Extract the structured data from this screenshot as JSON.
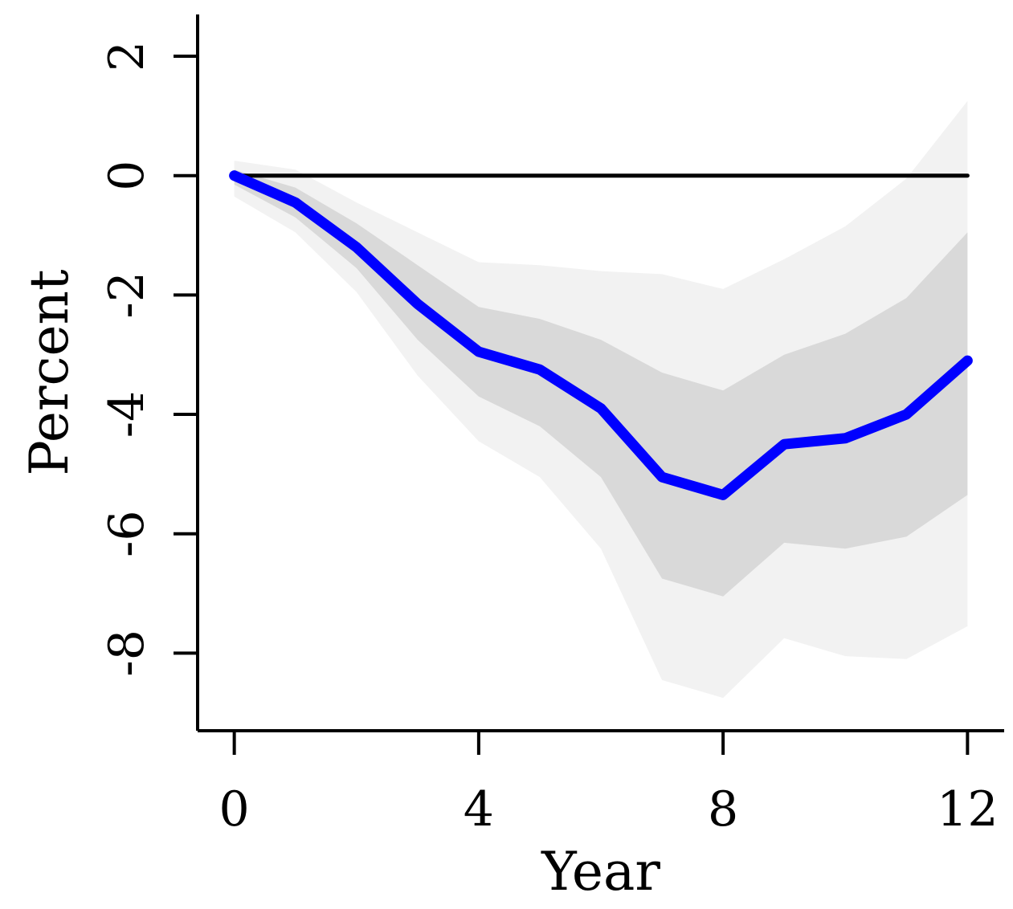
{
  "chart_data": {
    "type": "line",
    "title": "",
    "xlabel": "Year",
    "ylabel": "Percent",
    "xlim": [
      -0.6,
      12.6
    ],
    "ylim": [
      -9.3,
      2.7
    ],
    "xticks": [
      0,
      4,
      8,
      12
    ],
    "xtick_labels": [
      "0",
      "4",
      "8",
      "12"
    ],
    "yticks": [
      -8,
      -6,
      -4,
      -2,
      0,
      2
    ],
    "ytick_labels": [
      "-8",
      "-6",
      "-4",
      "-2",
      "0",
      "2"
    ],
    "grid": false,
    "legend": "none",
    "x": [
      0,
      1,
      2,
      3,
      4,
      5,
      6,
      7,
      8,
      9,
      10,
      11,
      12
    ],
    "series": [
      {
        "role": "point-estimate",
        "color": "#0000ff",
        "values": [
          0,
          -0.45,
          -1.2,
          -2.15,
          -2.95,
          -3.25,
          -3.9,
          -5.05,
          -5.35,
          -4.5,
          -4.4,
          -4.0,
          -3.1
        ]
      },
      {
        "role": "zero-line",
        "color": "#000000",
        "values": [
          0,
          0,
          0,
          0,
          0,
          0,
          0,
          0,
          0,
          0,
          0,
          0,
          0
        ]
      }
    ],
    "bands": [
      {
        "role": "outer-interval",
        "color": "#f2f2f2",
        "upper": [
          0.25,
          0.1,
          -0.45,
          -0.95,
          -1.45,
          -1.5,
          -1.6,
          -1.65,
          -1.9,
          -1.4,
          -0.85,
          -0.05,
          1.25
        ],
        "lower": [
          -0.35,
          -0.95,
          -1.95,
          -3.35,
          -4.45,
          -5.05,
          -6.25,
          -8.45,
          -8.75,
          -7.75,
          -8.05,
          -8.1,
          -7.55
        ]
      },
      {
        "role": "inner-interval",
        "color": "#d9d9d9",
        "upper": [
          0.1,
          -0.2,
          -0.8,
          -1.5,
          -2.2,
          -2.4,
          -2.75,
          -3.3,
          -3.6,
          -3.0,
          -2.65,
          -2.05,
          -0.95
        ],
        "lower": [
          -0.15,
          -0.7,
          -1.55,
          -2.75,
          -3.7,
          -4.2,
          -5.05,
          -6.75,
          -7.05,
          -6.15,
          -6.25,
          -6.05,
          -5.35
        ]
      }
    ]
  }
}
